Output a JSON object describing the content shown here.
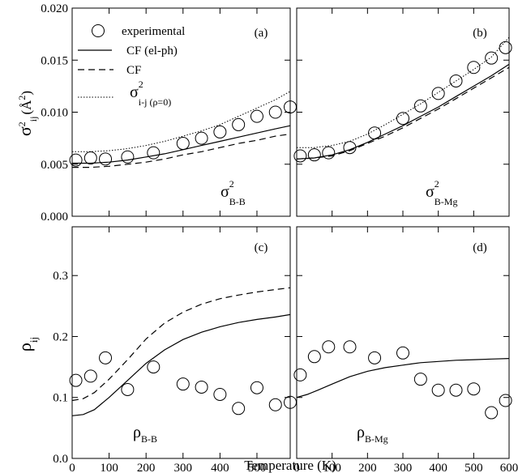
{
  "chart_data": {
    "type": "scatter",
    "xlabel": "Temperature (K)",
    "x_ticks": [
      "0",
      "100",
      "200",
      "300",
      "400",
      "500",
      "600"
    ],
    "legend": {
      "experimental": "experimental",
      "cf_elph": "CF (el-ph)",
      "cf": "CF",
      "sigma_rho0_main": "σ",
      "sigma_rho0_sup": "2",
      "sigma_rho0_sub": "i-j (ρ=0)"
    },
    "row_top": {
      "ylabel_main": "σ",
      "ylabel_sup": "2",
      "ylabel_sub": "ij",
      "ylabel_unit": "(Å",
      "ylabel_unit_sup": "2",
      "ylabel_close": ")",
      "ylim": [
        0,
        0.02
      ],
      "y_ticks": [
        "0.000",
        "0.005",
        "0.010",
        "0.015",
        "0.020"
      ]
    },
    "row_bottom": {
      "ylabel_main": "ρ",
      "ylabel_sub": "ij",
      "ylim": [
        0,
        0.38
      ],
      "y_ticks": [
        "0.0",
        "0.1",
        "0.2",
        "0.3"
      ]
    },
    "panels": [
      {
        "label": "(a)",
        "annot_main": "σ",
        "annot_sup": "2",
        "annot_sub": "B-B",
        "xlim": [
          0,
          590
        ],
        "experimental": {
          "x": [
            10,
            50,
            90,
            150,
            220,
            300,
            350,
            400,
            450,
            500,
            550,
            590
          ],
          "y": [
            0.0054,
            0.0056,
            0.0055,
            0.0057,
            0.0061,
            0.007,
            0.0075,
            0.0081,
            0.0088,
            0.0096,
            0.01,
            0.0105
          ]
        },
        "cf_elph": {
          "x": [
            0,
            50,
            100,
            150,
            200,
            250,
            300,
            350,
            400,
            450,
            500,
            550,
            590
          ],
          "y": [
            0.0051,
            0.0051,
            0.0052,
            0.0054,
            0.0057,
            0.006,
            0.0064,
            0.0068,
            0.0072,
            0.0076,
            0.008,
            0.0084,
            0.0087
          ]
        },
        "cf": {
          "x": [
            0,
            50,
            100,
            150,
            200,
            250,
            300,
            350,
            400,
            450,
            500,
            550,
            590
          ],
          "y": [
            0.0047,
            0.0047,
            0.0048,
            0.005,
            0.0052,
            0.0055,
            0.0059,
            0.0062,
            0.0066,
            0.007,
            0.0073,
            0.0077,
            0.0079
          ]
        },
        "sigma_rho0": {
          "x": [
            0,
            50,
            100,
            150,
            200,
            250,
            300,
            350,
            400,
            450,
            500,
            550,
            590
          ],
          "y": [
            0.0062,
            0.0062,
            0.0063,
            0.0065,
            0.0068,
            0.0072,
            0.0077,
            0.0082,
            0.0088,
            0.0096,
            0.0104,
            0.0112,
            0.012
          ]
        }
      },
      {
        "label": "(b)",
        "annot_main": "σ",
        "annot_sup": "2",
        "annot_sub": "B-Mg",
        "xlim": [
          0,
          600
        ],
        "experimental": {
          "x": [
            10,
            50,
            90,
            150,
            220,
            300,
            350,
            400,
            450,
            500,
            550,
            590
          ],
          "y": [
            0.0058,
            0.0059,
            0.0061,
            0.0066,
            0.008,
            0.0094,
            0.0106,
            0.0118,
            0.013,
            0.0143,
            0.0152,
            0.0162
          ]
        },
        "cf_elph": {
          "x": [
            0,
            50,
            100,
            150,
            200,
            250,
            300,
            350,
            400,
            450,
            500,
            550,
            600
          ],
          "y": [
            0.0055,
            0.0056,
            0.0059,
            0.0064,
            0.0071,
            0.0079,
            0.0087,
            0.0096,
            0.0105,
            0.0115,
            0.0125,
            0.0135,
            0.0146
          ]
        },
        "cf": {
          "x": [
            0,
            50,
            100,
            150,
            200,
            250,
            300,
            350,
            400,
            450,
            500,
            550,
            600
          ],
          "y": [
            0.0055,
            0.0056,
            0.0058,
            0.0063,
            0.007,
            0.0077,
            0.0085,
            0.0094,
            0.0103,
            0.0113,
            0.0123,
            0.0133,
            0.0143
          ]
        },
        "sigma_rho0": {
          "x": [
            0,
            50,
            100,
            150,
            200,
            250,
            300,
            350,
            400,
            450,
            500,
            550,
            600
          ],
          "y": [
            0.0066,
            0.0066,
            0.0068,
            0.0072,
            0.0079,
            0.0088,
            0.0098,
            0.0108,
            0.0119,
            0.013,
            0.0141,
            0.0153,
            0.0172
          ]
        }
      },
      {
        "label": "(c)",
        "annot_main": "ρ",
        "annot_sub": "B-B",
        "xlim": [
          0,
          590
        ],
        "experimental": {
          "x": [
            10,
            50,
            90,
            150,
            220,
            300,
            350,
            400,
            450,
            500,
            550,
            590
          ],
          "y": [
            0.128,
            0.135,
            0.165,
            0.113,
            0.15,
            0.122,
            0.117,
            0.105,
            0.082,
            0.116,
            0.088,
            0.092
          ]
        },
        "cf_elph": {
          "x": [
            0,
            30,
            60,
            100,
            150,
            200,
            250,
            300,
            350,
            400,
            450,
            500,
            550,
            590
          ],
          "y": [
            0.07,
            0.072,
            0.08,
            0.1,
            0.128,
            0.156,
            0.178,
            0.195,
            0.207,
            0.216,
            0.223,
            0.228,
            0.232,
            0.236
          ]
        },
        "cf": {
          "x": [
            0,
            30,
            60,
            100,
            150,
            200,
            250,
            300,
            350,
            400,
            450,
            500,
            550,
            590
          ],
          "y": [
            0.095,
            0.098,
            0.108,
            0.13,
            0.162,
            0.196,
            0.222,
            0.24,
            0.253,
            0.262,
            0.268,
            0.273,
            0.277,
            0.28
          ]
        }
      },
      {
        "label": "(d)",
        "annot_main": "ρ",
        "annot_sub": "B-Mg",
        "xlim": [
          0,
          600
        ],
        "experimental": {
          "x": [
            10,
            50,
            90,
            150,
            220,
            300,
            350,
            400,
            450,
            500,
            550,
            590
          ],
          "y": [
            0.137,
            0.167,
            0.183,
            0.183,
            0.165,
            0.173,
            0.13,
            0.112,
            0.112,
            0.114,
            0.075,
            0.095
          ]
        },
        "cf_elph": {
          "x": [
            0,
            30,
            60,
            100,
            150,
            200,
            250,
            300,
            350,
            400,
            450,
            500,
            550,
            600
          ],
          "y": [
            0.1,
            0.105,
            0.112,
            0.122,
            0.134,
            0.143,
            0.149,
            0.153,
            0.157,
            0.159,
            0.161,
            0.162,
            0.163,
            0.164
          ]
        }
      }
    ]
  }
}
